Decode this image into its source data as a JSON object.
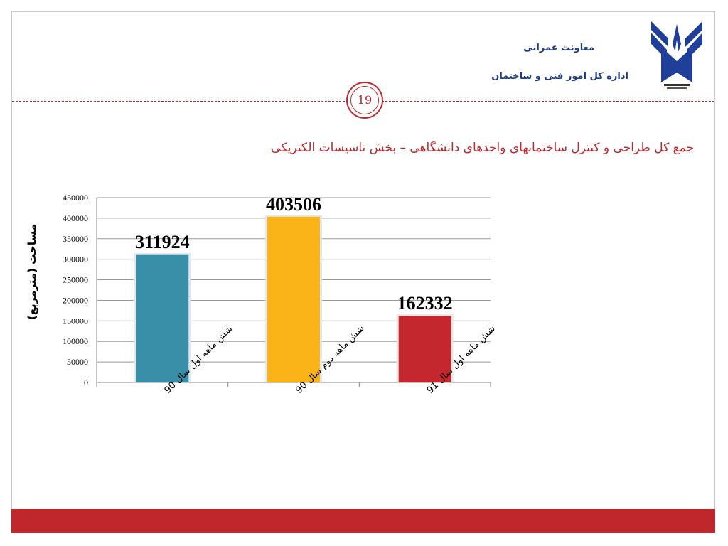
{
  "header": {
    "line1": "معاونت عمرانی",
    "line2": "اداره کل امور فنی و ساختمان",
    "page_number": "19"
  },
  "colors": {
    "accent": "#c0272d",
    "header_text": "#1f3a8a",
    "logo_blue": "#1f3f99"
  },
  "chart_data": {
    "type": "bar",
    "title": "جمع کل طراحی و کنترل ساختمانهای واحدهای دانشگاهی – بخش تاسیسات الکتریکی",
    "xlabel": "",
    "ylabel": "مساحت (مترمربع)",
    "ylim": [
      0,
      450000
    ],
    "yticks": [
      0,
      50000,
      100000,
      150000,
      200000,
      250000,
      300000,
      350000,
      400000,
      450000
    ],
    "grid": true,
    "categories": [
      "شش ماهه اول سال 90",
      "شش ماهه دوم سال 90",
      "شش ماهه اول سال 91"
    ],
    "values": [
      311924,
      403506,
      162332
    ],
    "data_labels": [
      "311924",
      "403506",
      "162332"
    ],
    "bar_colors": [
      "#3a8fa8",
      "#fbb418",
      "#c4272e"
    ]
  }
}
